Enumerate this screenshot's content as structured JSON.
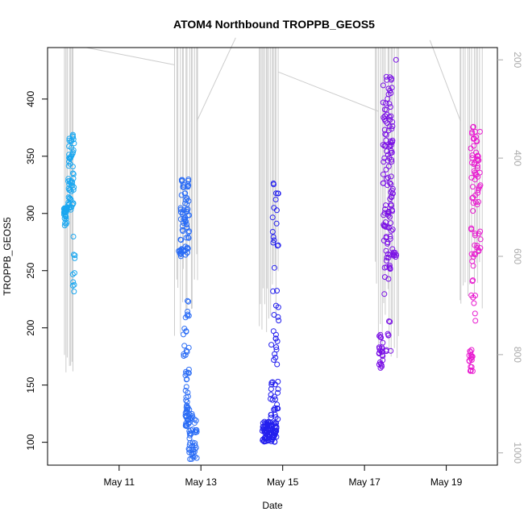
{
  "chart_data": {
    "type": "scatter",
    "title": "ATOM4 Northbound TROPPB_GEOS5",
    "xlabel": "Date",
    "ylabel": "TROPPB_GEOS5",
    "x_tick_labels": [
      {
        "day": 11,
        "label": "May 11"
      },
      {
        "day": 13,
        "label": "May 13"
      },
      {
        "day": 15,
        "label": "May 15"
      },
      {
        "day": 17,
        "label": "May 17"
      },
      {
        "day": 19,
        "label": "May 19"
      }
    ],
    "xlim": [
      9.25,
      20.25
    ],
    "ylim": [
      80,
      445
    ],
    "y_ticks": [
      100,
      150,
      200,
      250,
      300,
      350,
      400
    ],
    "y_tick_labels": [
      "100",
      "150",
      "200",
      "250",
      "300",
      "350",
      "400"
    ],
    "y2_lim": [
      1025,
      175
    ],
    "y2_ticks": [
      200,
      400,
      600,
      800,
      1000
    ],
    "y2_tick_labels": [
      "200",
      "400",
      "600",
      "800",
      "1000"
    ],
    "y2_color": "#aaaaaa",
    "background_line_color": "#cccccc",
    "grid": false,
    "groups": [
      {
        "color": "#1aa7f0",
        "clusters": [
          {
            "x": [
              9.65,
              9.72
            ],
            "y": [
              289,
              305
            ],
            "n": 28
          },
          {
            "x": [
              9.75,
              9.9
            ],
            "y": [
              300,
              370
            ],
            "n": 60
          },
          {
            "x": [
              9.86,
              9.92
            ],
            "y": [
              226,
              280
            ],
            "n": 10
          }
        ]
      },
      {
        "color": "#2a6cf5",
        "clusters": [
          {
            "x": [
              12.45,
              12.52
            ],
            "y": [
              265,
              268
            ],
            "n": 6
          },
          {
            "x": [
              12.5,
              12.72
            ],
            "y": [
              262,
              330
            ],
            "n": 70
          },
          {
            "x": [
              12.55,
              12.72
            ],
            "y": [
              175,
              232
            ],
            "n": 18
          },
          {
            "x": [
              12.62,
              12.72
            ],
            "y": [
              112,
              165
            ],
            "n": 40
          },
          {
            "x": [
              12.7,
              12.9
            ],
            "y": [
              85,
              125
            ],
            "n": 45
          }
        ]
      },
      {
        "color": "#2420ee",
        "clusters": [
          {
            "x": [
              14.5,
              14.85
            ],
            "y": [
              100,
              118
            ],
            "n": 95
          },
          {
            "x": [
              14.7,
              14.9
            ],
            "y": [
              120,
              153
            ],
            "n": 25
          },
          {
            "x": [
              14.72,
              14.9
            ],
            "y": [
              166,
              198
            ],
            "n": 12
          },
          {
            "x": [
              14.75,
              14.9
            ],
            "y": [
              205,
              330
            ],
            "n": 24
          }
        ]
      },
      {
        "color": "#7a10e5",
        "clusters": [
          {
            "x": [
              17.35,
              17.45
            ],
            "y": [
              162,
              195
            ],
            "n": 24
          },
          {
            "x": [
              17.45,
              17.7
            ],
            "y": [
              265,
              420
            ],
            "n": 110
          },
          {
            "x": [
              17.48,
              17.65
            ],
            "y": [
              175,
              265
            ],
            "n": 22
          },
          {
            "x": [
              17.7,
              17.8
            ],
            "y": [
              262,
              268
            ],
            "n": 8
          },
          {
            "x": [
              17.75,
              17.78
            ],
            "y": [
              434,
              437
            ],
            "n": 1
          }
        ]
      },
      {
        "color": "#e81ad0",
        "clusters": [
          {
            "x": [
              19.55,
              19.65
            ],
            "y": [
              162,
              182
            ],
            "n": 18
          },
          {
            "x": [
              19.6,
              19.85
            ],
            "y": [
              305,
              376
            ],
            "n": 48
          },
          {
            "x": [
              19.6,
              19.72
            ],
            "y": [
              205,
              305
            ],
            "n": 20
          },
          {
            "x": [
              19.75,
              19.85
            ],
            "y": [
              265,
              285
            ],
            "n": 8
          }
        ]
      }
    ],
    "background_pressure_line": {
      "diagonals": [
        [
          [
            10.2,
            175
          ],
          [
            12.35,
            210
          ]
        ],
        [
          [
            12.9,
            325
          ],
          [
            13.85,
            155
          ]
        ],
        [
          [
            14.9,
            225
          ],
          [
            17.35,
            305
          ]
        ],
        [
          [
            18.6,
            160
          ],
          [
            19.35,
            325
          ]
        ]
      ],
      "spikes": [
        {
          "x": [
            9.65,
            9.9
          ],
          "top": 150,
          "bottom": [
            800,
            840
          ],
          "n": 7
        },
        {
          "x": [
            12.35,
            12.95
          ],
          "top": 150,
          "bottom": [
            560,
            770
          ],
          "n": 14
        },
        {
          "x": [
            14.4,
            14.9
          ],
          "top": 150,
          "bottom": [
            580,
            760
          ],
          "n": 14
        },
        {
          "x": [
            17.25,
            17.85
          ],
          "top": 150,
          "bottom": [
            560,
            830
          ],
          "n": 14
        },
        {
          "x": [
            19.3,
            19.9
          ],
          "top": 150,
          "bottom": [
            610,
            720
          ],
          "n": 12
        }
      ]
    }
  }
}
